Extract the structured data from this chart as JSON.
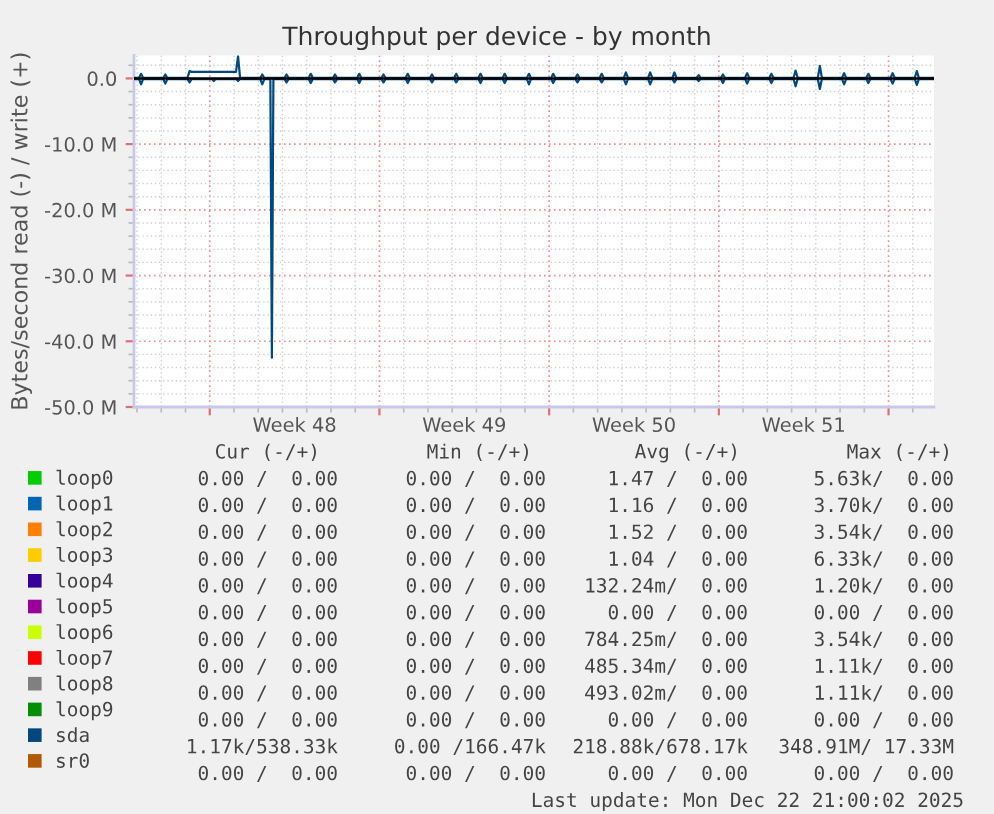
{
  "chart_data": {
    "type": "line",
    "title": "Throughput per device - by month",
    "ylabel": "Bytes/second read (-) / write (+)",
    "x": [
      "2025-11-19T21:00",
      "2025-11-20T02:00",
      "2025-11-20T04:00",
      "2025-11-20T06:00",
      "2025-11-21T02:00",
      "2025-11-21T04:00",
      "2025-11-21T06:00",
      "2025-11-22T02:00",
      "2025-11-22T04:00",
      "2025-11-22T06:00",
      "2025-11-23T02:00",
      "2025-11-23T04:00",
      "2025-11-23T06:00",
      "2025-11-24T02:00",
      "2025-11-24T04:00",
      "2025-11-24T06:00",
      "2025-11-25T02:00",
      "2025-11-25T04:00",
      "2025-11-25T06:00",
      "2025-11-25T12:00",
      "2025-11-25T13:30",
      "2025-11-25T15:00",
      "2025-11-26T02:00",
      "2025-11-26T04:00",
      "2025-11-26T06:00",
      "2025-11-27T02:00",
      "2025-11-27T04:00",
      "2025-11-27T06:00",
      "2025-11-28T02:00",
      "2025-11-28T04:00",
      "2025-11-28T06:00",
      "2025-11-29T02:00",
      "2025-11-29T04:00",
      "2025-11-29T06:00",
      "2025-11-30T02:00",
      "2025-11-30T04:00",
      "2025-11-30T06:00",
      "2025-12-01T02:00",
      "2025-12-01T04:00",
      "2025-12-01T06:00",
      "2025-12-02T02:00",
      "2025-12-02T04:00",
      "2025-12-02T06:00",
      "2025-12-03T02:00",
      "2025-12-03T04:00",
      "2025-12-03T06:00",
      "2025-12-04T02:00",
      "2025-12-04T04:00",
      "2025-12-04T06:00",
      "2025-12-05T02:00",
      "2025-12-05T04:00",
      "2025-12-05T06:00",
      "2025-12-06T02:00",
      "2025-12-06T04:00",
      "2025-12-06T06:00",
      "2025-12-07T02:00",
      "2025-12-07T04:00",
      "2025-12-07T06:00",
      "2025-12-08T02:00",
      "2025-12-08T04:00",
      "2025-12-08T06:00",
      "2025-12-09T02:00",
      "2025-12-09T04:00",
      "2025-12-09T06:00",
      "2025-12-10T02:00",
      "2025-12-10T04:00",
      "2025-12-10T06:00",
      "2025-12-11T02:00",
      "2025-12-11T04:00",
      "2025-12-11T06:00",
      "2025-12-12T02:00",
      "2025-12-12T04:00",
      "2025-12-12T06:00",
      "2025-12-13T02:00",
      "2025-12-13T04:00",
      "2025-12-13T06:00",
      "2025-12-14T02:00",
      "2025-12-14T04:00",
      "2025-12-14T06:00",
      "2025-12-15T02:00",
      "2025-12-15T04:00",
      "2025-12-15T06:00",
      "2025-12-16T02:00",
      "2025-12-16T04:00",
      "2025-12-16T06:00",
      "2025-12-17T02:00",
      "2025-12-17T04:00",
      "2025-12-17T06:00",
      "2025-12-18T02:00",
      "2025-12-18T04:00",
      "2025-12-18T06:00",
      "2025-12-19T02:00",
      "2025-12-19T04:00",
      "2025-12-19T06:00",
      "2025-12-20T02:00",
      "2025-12-20T04:00",
      "2025-12-20T06:00",
      "2025-12-21T02:00",
      "2025-12-21T04:00",
      "2025-12-21T06:00",
      "2025-12-22T02:00",
      "2025-12-22T04:00",
      "2025-12-22T06:00",
      "2025-12-22T21:00"
    ],
    "series": [
      {
        "name": "loop0",
        "color": "#00cc00",
        "values": [
          null,
          null,
          null,
          null,
          null,
          null,
          null,
          null,
          null,
          null,
          null,
          null,
          null,
          null,
          null,
          null,
          null,
          null,
          null,
          null,
          null,
          null,
          null,
          null,
          null,
          null,
          null,
          null,
          null,
          null,
          null,
          null,
          null,
          null,
          null,
          null,
          null,
          null,
          null,
          null,
          null,
          null,
          null,
          null,
          null,
          null,
          null,
          null,
          null,
          null,
          null,
          null,
          null,
          null,
          null,
          null,
          null,
          null,
          null,
          null,
          null,
          null,
          null,
          null,
          null,
          null,
          null,
          null,
          null,
          null,
          null,
          null,
          null,
          null,
          null,
          null,
          null,
          null,
          null,
          null,
          null,
          null,
          null,
          null,
          null,
          null,
          null,
          null,
          null,
          null,
          null,
          null,
          null,
          null,
          null,
          null,
          null,
          null,
          null,
          null,
          null,
          null,
          null,
          null
        ]
      },
      {
        "name": "loop1",
        "color": "#0066b3",
        "values": [
          null,
          null,
          null,
          null,
          null,
          null,
          null,
          null,
          null,
          null,
          null,
          null,
          null,
          null,
          null,
          null,
          null,
          null,
          null,
          null,
          null,
          null,
          null,
          null,
          null,
          null,
          null,
          null,
          null,
          null,
          null,
          null,
          null,
          null,
          null,
          null,
          null,
          null,
          null,
          null,
          null,
          null,
          null,
          null,
          null,
          null,
          null,
          null,
          null,
          null,
          null,
          null,
          null,
          null,
          null,
          null,
          null,
          null,
          null,
          null,
          null,
          null,
          null,
          null,
          null,
          null,
          null,
          null,
          null,
          null,
          null,
          null,
          null,
          null,
          null,
          null,
          null,
          null,
          null,
          null,
          null,
          null,
          null,
          null,
          null,
          null,
          null,
          null,
          null,
          null,
          null,
          null,
          null,
          null,
          null,
          null,
          null,
          null,
          null,
          null,
          null,
          null,
          null,
          null
        ]
      },
      {
        "name": "loop2",
        "color": "#ff8000",
        "values": [
          null,
          null,
          null,
          null,
          null,
          null,
          null,
          null,
          null,
          null,
          null,
          null,
          null,
          null,
          null,
          null,
          null,
          null,
          null,
          null,
          null,
          null,
          null,
          null,
          null,
          null,
          null,
          null,
          null,
          null,
          null,
          null,
          null,
          null,
          null,
          null,
          null,
          null,
          null,
          null,
          null,
          null,
          null,
          null,
          null,
          null,
          null,
          null,
          null,
          null,
          null,
          null,
          null,
          null,
          null,
          null,
          null,
          null,
          null,
          null,
          null,
          null,
          null,
          null,
          null,
          null,
          null,
          null,
          null,
          null,
          null,
          null,
          null,
          null,
          null,
          null,
          null,
          null,
          null,
          null,
          null,
          null,
          null,
          null,
          null,
          null,
          null,
          null,
          null,
          null,
          null,
          null,
          null,
          null,
          null,
          null,
          null,
          null,
          null,
          null,
          null,
          null,
          null,
          null
        ]
      },
      {
        "name": "loop3",
        "color": "#ffcc00",
        "values": [
          null,
          null,
          null,
          null,
          null,
          null,
          null,
          null,
          null,
          null,
          null,
          null,
          null,
          null,
          null,
          null,
          null,
          null,
          null,
          null,
          null,
          null,
          null,
          null,
          null,
          null,
          null,
          null,
          null,
          null,
          null,
          null,
          null,
          null,
          null,
          null,
          null,
          null,
          null,
          null,
          null,
          null,
          null,
          null,
          null,
          null,
          null,
          null,
          null,
          null,
          null,
          null,
          null,
          null,
          null,
          null,
          null,
          null,
          null,
          null,
          null,
          null,
          null,
          null,
          null,
          null,
          null,
          null,
          null,
          null,
          null,
          null,
          null,
          null,
          null,
          null,
          null,
          null,
          null,
          null,
          null,
          null,
          null,
          null,
          null,
          null,
          null,
          null,
          null,
          null,
          null,
          null,
          null,
          null,
          null,
          null,
          null,
          null,
          null,
          null,
          null,
          null,
          null,
          null
        ]
      },
      {
        "name": "loop4",
        "color": "#330099",
        "values": [
          null,
          null,
          null,
          null,
          null,
          null,
          null,
          null,
          null,
          null,
          null,
          null,
          null,
          null,
          null,
          null,
          null,
          null,
          null,
          null,
          null,
          null,
          null,
          null,
          null,
          null,
          null,
          null,
          null,
          null,
          null,
          null,
          null,
          null,
          null,
          null,
          null,
          null,
          null,
          null,
          null,
          null,
          null,
          null,
          null,
          null,
          null,
          null,
          null,
          null,
          null,
          null,
          null,
          null,
          null,
          null,
          null,
          null,
          null,
          null,
          null,
          null,
          null,
          null,
          null,
          null,
          null,
          null,
          null,
          null,
          null,
          null,
          null,
          null,
          null,
          null,
          null,
          null,
          null,
          null,
          null,
          null,
          null,
          null,
          null,
          null,
          null,
          null,
          null,
          null,
          null,
          null,
          null,
          null,
          null,
          null,
          null,
          null,
          null,
          null,
          null,
          null,
          null,
          null
        ]
      },
      {
        "name": "loop5",
        "color": "#990099",
        "values": [
          null,
          null,
          null,
          null,
          null,
          null,
          null,
          null,
          null,
          null,
          null,
          null,
          null,
          null,
          null,
          null,
          null,
          null,
          null,
          null,
          null,
          null,
          null,
          null,
          null,
          null,
          null,
          null,
          null,
          null,
          null,
          null,
          null,
          null,
          null,
          null,
          null,
          null,
          null,
          null,
          null,
          null,
          null,
          null,
          null,
          null,
          null,
          null,
          null,
          null,
          null,
          null,
          null,
          null,
          null,
          null,
          null,
          null,
          null,
          null,
          null,
          null,
          null,
          null,
          null,
          null,
          null,
          null,
          null,
          null,
          null,
          null,
          null,
          null,
          null,
          null,
          null,
          null,
          null,
          null,
          null,
          null,
          null,
          null,
          null,
          null,
          null,
          null,
          null,
          null,
          null,
          null,
          null,
          null,
          null,
          null,
          null,
          null,
          null,
          null,
          null,
          null,
          null,
          null
        ]
      },
      {
        "name": "loop6",
        "color": "#ccff00",
        "values": [
          null,
          null,
          null,
          null,
          null,
          null,
          null,
          null,
          null,
          null,
          null,
          null,
          null,
          null,
          null,
          null,
          null,
          null,
          null,
          null,
          null,
          null,
          null,
          null,
          null,
          null,
          null,
          null,
          null,
          null,
          null,
          null,
          null,
          null,
          null,
          null,
          null,
          null,
          null,
          null,
          null,
          null,
          null,
          null,
          null,
          null,
          null,
          null,
          null,
          null,
          null,
          null,
          null,
          null,
          null,
          null,
          null,
          null,
          null,
          null,
          null,
          null,
          null,
          null,
          null,
          null,
          null,
          null,
          null,
          null,
          null,
          null,
          null,
          null,
          null,
          null,
          null,
          null,
          null,
          null,
          null,
          null,
          null,
          null,
          null,
          null,
          null,
          null,
          null,
          null,
          null,
          null,
          null,
          null,
          null,
          null,
          null,
          null,
          null,
          null,
          null,
          null,
          null,
          null
        ]
      },
      {
        "name": "loop7",
        "color": "#ff0000",
        "values": [
          null,
          null,
          null,
          null,
          null,
          null,
          null,
          null,
          null,
          null,
          null,
          null,
          null,
          null,
          null,
          null,
          null,
          null,
          null,
          null,
          null,
          null,
          null,
          null,
          null,
          null,
          null,
          null,
          null,
          null,
          null,
          null,
          null,
          null,
          null,
          null,
          null,
          null,
          null,
          null,
          null,
          null,
          null,
          null,
          null,
          null,
          null,
          null,
          null,
          null,
          null,
          null,
          null,
          null,
          null,
          null,
          null,
          null,
          null,
          null,
          null,
          null,
          null,
          null,
          null,
          null,
          null,
          null,
          null,
          null,
          null,
          null,
          null,
          null,
          null,
          null,
          null,
          null,
          null,
          null,
          null,
          null,
          null,
          null,
          null,
          null,
          null,
          null,
          null,
          null,
          null,
          null,
          null,
          null,
          null,
          null,
          null,
          null,
          null,
          null,
          null,
          null,
          null,
          null
        ]
      },
      {
        "name": "loop8",
        "color": "#808080",
        "values": [
          null,
          null,
          null,
          null,
          null,
          null,
          null,
          null,
          null,
          null,
          null,
          null,
          null,
          null,
          null,
          null,
          null,
          null,
          null,
          null,
          null,
          null,
          null,
          null,
          null,
          null,
          null,
          null,
          null,
          null,
          null,
          null,
          null,
          null,
          null,
          null,
          null,
          null,
          null,
          null,
          null,
          null,
          null,
          null,
          null,
          null,
          null,
          null,
          null,
          null,
          null,
          null,
          null,
          null,
          null,
          null,
          null,
          null,
          null,
          null,
          null,
          null,
          null,
          null,
          null,
          null,
          null,
          null,
          null,
          null,
          null,
          null,
          null,
          null,
          null,
          null,
          null,
          null,
          null,
          null,
          null,
          null,
          null,
          null,
          null,
          null,
          null,
          null,
          null,
          null,
          null,
          null,
          null,
          null,
          null,
          null,
          null,
          null,
          null,
          null,
          null,
          null,
          null,
          null
        ]
      },
      {
        "name": "loop9",
        "color": "#008f00",
        "values": [
          null,
          null,
          null,
          null,
          null,
          null,
          null,
          null,
          null,
          null,
          null,
          null,
          null,
          null,
          null,
          null,
          null,
          null,
          null,
          null,
          null,
          null,
          null,
          null,
          null,
          null,
          null,
          null,
          null,
          null,
          null,
          null,
          null,
          null,
          null,
          null,
          null,
          null,
          null,
          null,
          null,
          null,
          null,
          null,
          null,
          null,
          null,
          null,
          null,
          null,
          null,
          null,
          null,
          null,
          null,
          null,
          null,
          null,
          null,
          null,
          null,
          null,
          null,
          null,
          null,
          null,
          null,
          null,
          null,
          null,
          null,
          null,
          null,
          null,
          null,
          null,
          null,
          null,
          null,
          null,
          null,
          null,
          null,
          null,
          null,
          null,
          null,
          null,
          null,
          null,
          null,
          null,
          null,
          null,
          null,
          null,
          null,
          null,
          null,
          null,
          null,
          null,
          null,
          null
        ]
      },
      {
        "name": "sda",
        "color": "#00487d",
        "values": [
          -0.1,
          -0.1,
          -0.9,
          -0.1,
          -0.1,
          -0.8,
          -0.1,
          -0.1,
          -0.6,
          -0.1,
          -0.1,
          -0.4,
          -0.1,
          -0.1,
          -0.4,
          -0.1,
          -0.1,
          -0.9,
          -0.1,
          -0.1,
          -42.5,
          -0.1,
          -0.1,
          -0.6,
          -0.1,
          -0.1,
          -0.7,
          -0.1,
          -0.1,
          -0.6,
          -0.1,
          -0.1,
          -0.7,
          -0.1,
          -0.1,
          -0.6,
          -0.1,
          -0.1,
          -0.7,
          -0.1,
          -0.1,
          -0.6,
          -0.1,
          -0.1,
          -0.6,
          -0.1,
          -0.1,
          -0.7,
          -0.1,
          -0.1,
          -0.7,
          -0.1,
          -0.1,
          -0.9,
          -0.1,
          -0.1,
          -0.7,
          -0.1,
          -0.1,
          -0.6,
          -0.1,
          -0.1,
          -0.6,
          -0.1,
          -0.1,
          -0.9,
          -0.1,
          -0.1,
          -0.9,
          -0.1,
          -0.1,
          -0.6,
          -0.1,
          -0.1,
          -0.4,
          -0.1,
          -0.1,
          -0.7,
          -0.1,
          -0.1,
          -0.8,
          -0.1,
          -0.1,
          -0.7,
          -0.1,
          -0.1,
          -1.2,
          -0.1,
          -0.1,
          -1.6,
          -0.1,
          -0.1,
          -0.9,
          -0.1,
          -0.1,
          -0.7,
          -0.1,
          -0.1,
          -0.8,
          -0.1,
          -0.1,
          -1.0,
          -0.1,
          -0.1
        ]
      },
      {
        "color": "#00487d",
        "values": [
          0.1,
          0.1,
          0.7,
          0.1,
          0.1,
          0.6,
          0.1,
          0.1,
          1.1,
          1.0,
          1.0,
          1.0,
          1.0,
          1.0,
          3.4,
          0.1,
          0.1,
          0.6,
          0.1,
          0.1,
          0.1,
          0.1,
          0.1,
          0.6,
          0.1,
          0.1,
          0.7,
          0.1,
          0.1,
          0.6,
          0.1,
          0.1,
          0.7,
          0.1,
          0.1,
          0.6,
          0.1,
          0.1,
          0.7,
          0.1,
          0.1,
          0.6,
          0.1,
          0.1,
          0.7,
          0.1,
          0.1,
          0.7,
          0.1,
          0.1,
          0.7,
          0.1,
          0.1,
          0.7,
          0.1,
          0.1,
          0.7,
          0.1,
          0.1,
          0.6,
          0.1,
          0.1,
          0.7,
          0.1,
          0.1,
          0.9,
          0.1,
          0.1,
          0.9,
          0.1,
          0.1,
          0.9,
          0.1,
          0.1,
          0.5,
          0.1,
          0.1,
          0.6,
          0.1,
          0.1,
          0.8,
          0.1,
          0.1,
          0.7,
          0.1,
          0.1,
          1.2,
          0.1,
          0.1,
          1.9,
          0.1,
          0.1,
          0.8,
          0.1,
          0.1,
          0.7,
          0.1,
          0.1,
          0.8,
          0.1,
          0.1,
          1.1,
          0.1,
          0.1
        ]
      },
      {
        "name": "sr0",
        "color": "#b35a00",
        "values": [
          null,
          null,
          null,
          null,
          null,
          null,
          null,
          null,
          null,
          null,
          null,
          null,
          null,
          null,
          null,
          null,
          null,
          null,
          null,
          null,
          null,
          null,
          null,
          null,
          null,
          null,
          null,
          null,
          null,
          null,
          null,
          null,
          null,
          null,
          null,
          null,
          null,
          null,
          null,
          null,
          null,
          null,
          null,
          null,
          null,
          null,
          null,
          null,
          null,
          null,
          null,
          null,
          null,
          null,
          null,
          null,
          null,
          null,
          null,
          null,
          null,
          null,
          null,
          null,
          null,
          null,
          null,
          null,
          null,
          null,
          null,
          null,
          null,
          null,
          null,
          null,
          null,
          null,
          null,
          null,
          null,
          null,
          null,
          null,
          null,
          null,
          null,
          null,
          null,
          null,
          null,
          null,
          null,
          null,
          null,
          null,
          null,
          null,
          null,
          null,
          null,
          null,
          null,
          null
        ]
      }
    ],
    "ref_lines": [
      {
        "axis": "y",
        "value": 0,
        "color": "#000000"
      }
    ],
    "xlim": [
      "2025-11-19T21:00",
      "2025-12-22T21:00"
    ],
    "xticks": [
      {
        "value": "2025-11-23",
        "label": null
      },
      {
        "value": "2025-11-26T12:00",
        "label": "Week 48"
      },
      {
        "value": "2025-11-30",
        "label": null
      },
      {
        "value": "2025-12-03T12:00",
        "label": "Week 49"
      },
      {
        "value": "2025-12-07",
        "label": null
      },
      {
        "value": "2025-12-10T12:00",
        "label": "Week 50"
      },
      {
        "value": "2025-12-14",
        "label": null
      },
      {
        "value": "2025-12-17T12:00",
        "label": "Week 51"
      },
      {
        "value": "2025-12-21",
        "label": null
      }
    ],
    "ylim": [
      -50,
      3.5
    ],
    "yticks": [
      {
        "value": -50,
        "label": "-50.0 M"
      },
      {
        "value": -40,
        "label": "-40.0 M"
      },
      {
        "value": -30,
        "label": "-30.0 M"
      },
      {
        "value": -20,
        "label": "-20.0 M"
      },
      {
        "value": -10,
        "label": "-10.0 M"
      },
      {
        "value": 0,
        "label": "0.0"
      }
    ],
    "grid": true,
    "legend": "bottom",
    "annotations": [
      "Cur (-/+)",
      "Min (-/+)",
      "Avg (-/+)",
      "Max (-/+)",
      "0.00 /  0.00",
      "0.00 /  0.00",
      "1.47 /  0.00",
      "5.63k/  0.00",
      "0.00 /  0.00",
      "0.00 /  0.00",
      "1.16 /  0.00",
      "3.70k/  0.00",
      "0.00 /  0.00",
      "0.00 /  0.00",
      "1.52 /  0.00",
      "3.54k/  0.00",
      "0.00 /  0.00",
      "0.00 /  0.00",
      "1.04 /  0.00",
      "6.33k/  0.00",
      "0.00 /  0.00",
      "0.00 /  0.00",
      "132.24m/  0.00",
      "1.20k/  0.00",
      "0.00 /  0.00",
      "0.00 /  0.00",
      "0.00 /  0.00",
      "0.00 /  0.00",
      "0.00 /  0.00",
      "0.00 /  0.00",
      "784.25m/  0.00",
      "3.54k/  0.00",
      "0.00 /  0.00",
      "0.00 /  0.00",
      "485.34m/  0.00",
      "1.11k/  0.00",
      "0.00 /  0.00",
      "0.00 /  0.00",
      "493.02m/  0.00",
      "1.11k/  0.00",
      "0.00 /  0.00",
      "0.00 /  0.00",
      "0.00 /  0.00",
      "0.00 /  0.00",
      "1.17k/538.33k",
      "0.00 /166.47k",
      "218.88k/678.17k",
      "348.91M/ 17.33M",
      "0.00 /  0.00",
      "0.00 /  0.00",
      "0.00 /  0.00",
      "0.00 /  0.00",
      "Last update: Mon Dec 22 21:00:02 2025"
    ]
  }
}
